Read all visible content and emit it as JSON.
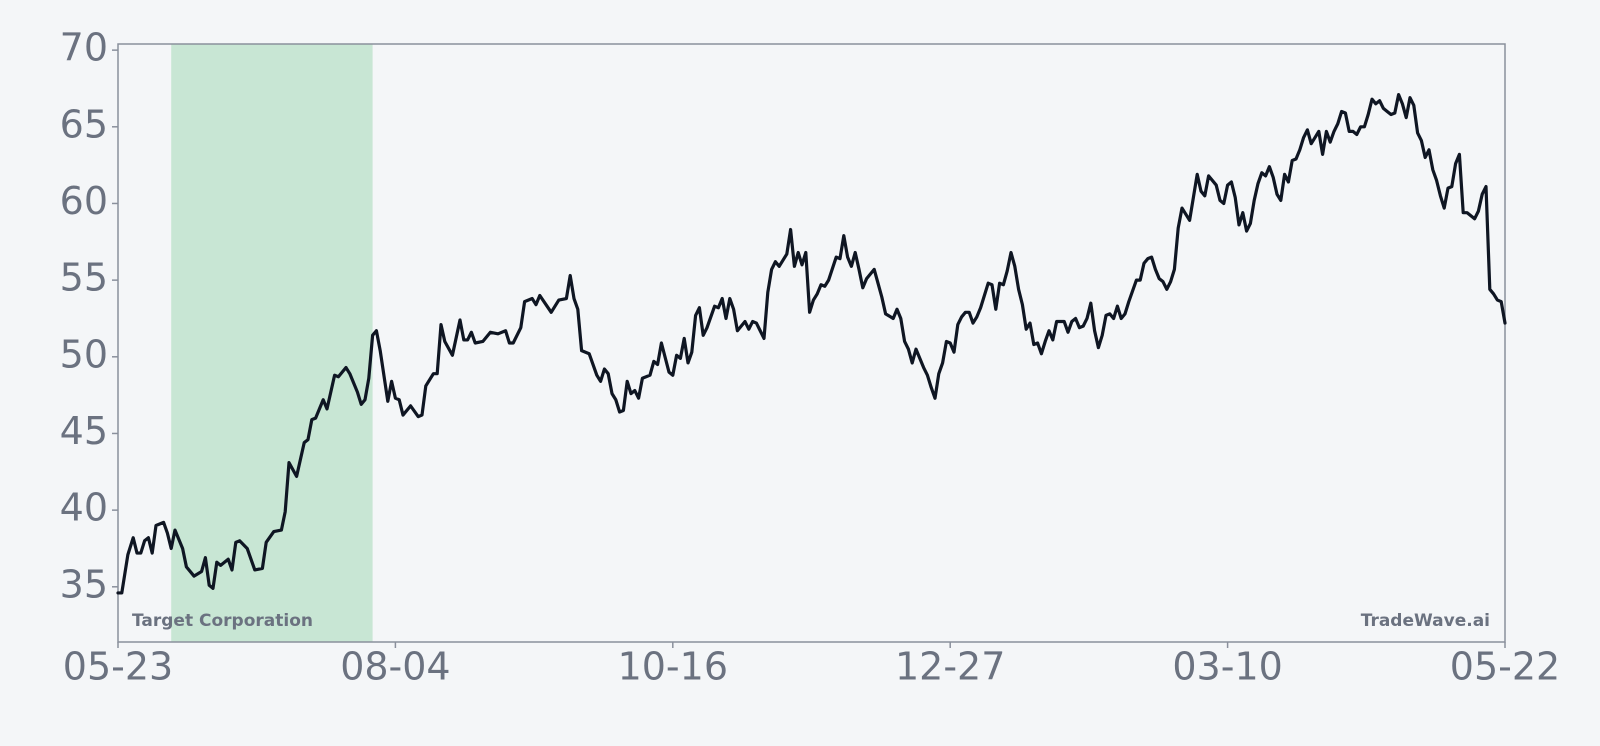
{
  "chart_data": {
    "type": "line",
    "company": "Target Corporation",
    "brand": "TradeWave.ai",
    "xlim": [
      0,
      365
    ],
    "ylim": [
      31.4,
      70.4
    ],
    "xticks": [
      {
        "value": 0,
        "label": "05-23"
      },
      {
        "value": 73,
        "label": "08-04"
      },
      {
        "value": 146,
        "label": "10-16"
      },
      {
        "value": 219,
        "label": "12-27"
      },
      {
        "value": 292,
        "label": "03-10"
      },
      {
        "value": 365,
        "label": "05-22"
      }
    ],
    "yticks": [
      35,
      40,
      45,
      50,
      55,
      60,
      65,
      70
    ],
    "highlight": {
      "start": 14,
      "end": 67,
      "color": "#c8e6d4"
    },
    "series": [
      {
        "color": "#0f1623",
        "x": [
          0,
          1,
          2.6,
          4,
          5,
          6,
          7,
          8,
          9,
          10,
          12,
          13,
          14,
          15,
          17,
          18,
          20,
          22,
          23,
          24,
          25,
          26,
          27,
          29,
          30,
          31,
          32,
          34,
          36,
          38,
          39,
          41,
          43,
          44,
          45,
          47,
          49,
          50,
          51,
          52,
          54,
          55,
          57,
          58,
          60,
          61,
          63,
          64,
          65,
          66,
          67,
          68,
          69,
          71,
          72,
          73,
          74,
          75,
          77,
          79,
          80,
          81,
          83,
          84,
          85,
          86,
          88,
          90,
          91,
          92,
          93,
          94,
          96,
          98,
          100,
          102,
          103,
          104,
          106,
          107,
          109,
          110,
          111,
          114,
          116,
          118,
          119,
          120,
          121,
          122,
          124,
          126,
          127,
          128,
          129,
          130,
          131,
          132,
          133,
          134,
          135,
          136,
          137,
          138,
          140,
          141,
          142,
          143,
          145,
          146,
          147,
          148,
          149,
          150,
          151,
          152,
          153,
          154,
          155,
          157,
          158,
          159,
          160,
          161,
          162,
          163,
          165,
          166,
          167,
          168,
          169,
          170,
          171,
          172,
          173,
          174,
          176,
          177,
          178,
          179,
          180,
          181,
          182,
          183,
          184,
          185,
          186,
          187,
          189,
          190,
          191,
          192,
          193,
          194,
          195,
          196,
          197,
          199,
          200,
          201,
          202,
          204,
          205,
          206,
          207,
          208,
          209,
          210,
          212,
          213,
          214,
          215,
          216,
          217,
          218,
          219,
          220,
          221,
          222,
          223,
          224,
          225,
          226,
          227,
          229,
          230,
          231,
          232,
          233,
          234,
          235,
          236,
          237,
          238,
          239,
          240,
          241,
          242,
          243,
          244,
          245,
          246,
          247,
          249,
          250,
          251,
          252,
          253,
          254,
          255,
          256,
          257,
          258,
          259,
          260,
          261,
          262,
          263,
          264,
          265,
          266,
          268,
          269,
          270,
          271,
          272,
          273,
          274,
          275,
          276,
          277,
          278,
          279,
          280,
          282,
          283,
          284,
          285,
          286,
          287,
          289,
          290,
          291,
          292,
          293,
          294,
          295,
          296,
          297,
          298,
          299,
          300,
          301,
          302,
          303,
          304,
          305,
          306,
          307,
          308,
          309,
          310,
          311,
          312,
          313,
          314,
          315,
          316,
          317,
          318,
          319,
          320,
          321,
          322,
          323,
          324,
          325,
          326,
          327,
          328,
          329,
          330,
          331,
          332,
          333,
          334,
          335,
          336,
          337,
          338,
          339,
          340,
          341,
          342,
          343,
          344,
          345,
          346,
          347,
          348,
          349,
          350,
          351,
          352,
          353,
          354,
          355,
          357,
          358,
          359,
          360,
          361,
          362,
          363,
          364,
          365
        ],
        "values": [
          34.6,
          34.6,
          37.1,
          38.2,
          37.2,
          37.2,
          38.0,
          38.2,
          37.2,
          39.0,
          39.2,
          38.5,
          37.5,
          38.7,
          37.5,
          36.3,
          35.7,
          36.0,
          36.9,
          35.1,
          34.9,
          36.6,
          36.4,
          36.8,
          36.1,
          37.9,
          38.0,
          37.5,
          36.1,
          36.2,
          37.9,
          38.6,
          38.7,
          39.9,
          43.1,
          42.2,
          44.4,
          44.6,
          45.9,
          46.0,
          47.2,
          46.6,
          48.8,
          48.7,
          49.3,
          48.9,
          47.7,
          46.9,
          47.2,
          48.6,
          51.4,
          51.7,
          50.4,
          47.1,
          48.4,
          47.3,
          47.2,
          46.2,
          46.8,
          46.1,
          46.2,
          48.1,
          48.9,
          48.9,
          52.1,
          51.0,
          50.1,
          52.4,
          51.1,
          51.1,
          51.6,
          50.9,
          51.0,
          51.6,
          51.5,
          51.7,
          50.9,
          50.9,
          51.9,
          53.6,
          53.8,
          53.4,
          54.0,
          52.9,
          53.7,
          53.8,
          55.3,
          53.8,
          53.1,
          50.4,
          50.2,
          48.8,
          48.4,
          49.2,
          48.9,
          47.6,
          47.2,
          46.4,
          46.5,
          48.4,
          47.6,
          47.8,
          47.3,
          48.6,
          48.8,
          49.7,
          49.5,
          50.9,
          49.0,
          48.8,
          50.1,
          49.9,
          51.2,
          49.6,
          50.3,
          52.7,
          53.2,
          51.4,
          51.9,
          53.3,
          53.2,
          53.8,
          52.5,
          53.8,
          53.1,
          51.7,
          52.3,
          51.8,
          52.3,
          52.2,
          51.7,
          51.2,
          54.2,
          55.7,
          56.2,
          55.9,
          56.7,
          58.3,
          55.9,
          56.8,
          56.0,
          56.8,
          52.9,
          53.7,
          54.1,
          54.7,
          54.6,
          55.0,
          56.5,
          56.4,
          57.9,
          56.5,
          55.9,
          56.8,
          55.7,
          54.5,
          55.1,
          55.7,
          54.8,
          53.9,
          52.8,
          52.5,
          53.1,
          52.5,
          51.0,
          50.5,
          49.6,
          50.5,
          49.3,
          48.8,
          48.0,
          47.3,
          48.9,
          49.6,
          51.0,
          50.9,
          50.3,
          52.1,
          52.6,
          52.9,
          52.9,
          52.2,
          52.6,
          53.2,
          54.8,
          54.7,
          53.1,
          54.8,
          54.7,
          55.6,
          56.8,
          55.9,
          54.4,
          53.4,
          51.8,
          52.2,
          50.8,
          50.9,
          50.2,
          51.0,
          51.7,
          51.1,
          52.3,
          52.3,
          51.6,
          52.3,
          52.5,
          51.9,
          52.0,
          52.5,
          53.5,
          51.7,
          50.6,
          51.4,
          52.7,
          52.8,
          52.5,
          53.3,
          52.5,
          52.8,
          53.6,
          55.0,
          55.0,
          56.1,
          56.4,
          56.5,
          55.7,
          55.1,
          54.9,
          54.4,
          54.9,
          55.7,
          58.4,
          59.7,
          58.9,
          60.4,
          61.9,
          60.8,
          60.5,
          61.8,
          61.2,
          60.2,
          60.0,
          61.2,
          61.4,
          60.4,
          58.6,
          59.4,
          58.2,
          58.7,
          60.2,
          61.3,
          62.0,
          61.8,
          62.4,
          61.7,
          60.6,
          60.2,
          61.9,
          61.4,
          62.8,
          62.9,
          63.5,
          64.3,
          64.8,
          63.9,
          64.3,
          64.7,
          63.2,
          64.7,
          64.0,
          64.7,
          65.2,
          66.0,
          65.9,
          64.7,
          64.7,
          64.5,
          65.0,
          65.0,
          65.8,
          66.8,
          66.5,
          66.7,
          66.2,
          66.0,
          65.8,
          65.9,
          67.1,
          66.5,
          65.6,
          66.9,
          66.4,
          64.6,
          64.1,
          63.0,
          63.5,
          62.2,
          61.5,
          60.5,
          59.7,
          61.0,
          61.1,
          62.6,
          63.2,
          59.4,
          59.4,
          59.0,
          59.5,
          60.6,
          61.1,
          54.4,
          54.1,
          53.7,
          53.6,
          52.2
        ]
      }
    ]
  }
}
